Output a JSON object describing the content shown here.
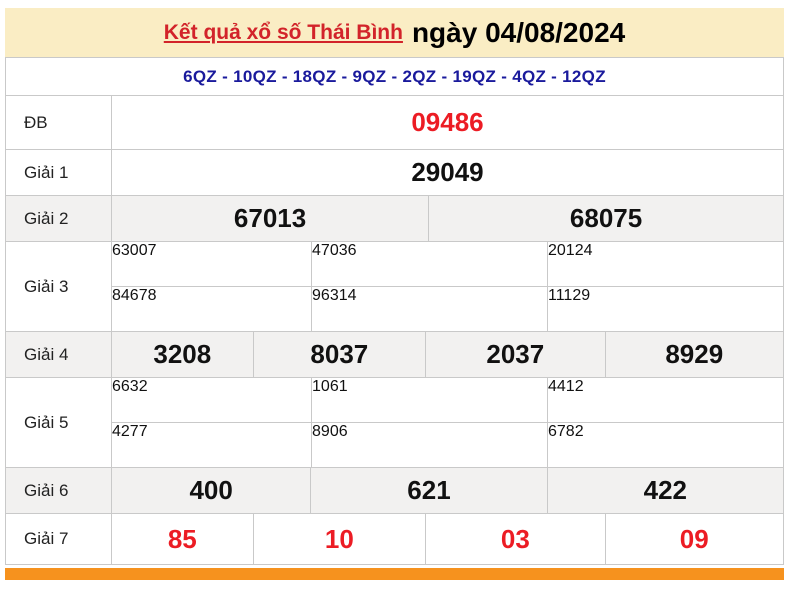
{
  "header": {
    "title_link": "Kết quả xổ số Thái Bình",
    "title_date": "ngày 04/08/2024"
  },
  "codes_line": "6QZ - 10QZ - 18QZ - 9QZ - 2QZ - 19QZ - 4QZ - 12QZ",
  "results": {
    "db": {
      "label": "ĐB",
      "value": "09486"
    },
    "g1": {
      "label": "Giải 1",
      "value": "29049"
    },
    "g2": {
      "label": "Giải 2",
      "values": [
        "67013",
        "68075"
      ]
    },
    "g3": {
      "label": "Giải 3",
      "row1": [
        "63007",
        "47036",
        "20124"
      ],
      "row2": [
        "84678",
        "96314",
        "11129"
      ]
    },
    "g4": {
      "label": "Giải 4",
      "values": [
        "3208",
        "8037",
        "2037",
        "8929"
      ]
    },
    "g5": {
      "label": "Giải 5",
      "row1": [
        "6632",
        "1061",
        "4412"
      ],
      "row2": [
        "4277",
        "8906",
        "6782"
      ]
    },
    "g6": {
      "label": "Giải 6",
      "values": [
        "400",
        "621",
        "422"
      ]
    },
    "g7": {
      "label": "Giải 7",
      "values": [
        "85",
        "10",
        "03",
        "09"
      ]
    }
  },
  "colors": {
    "header-bg": "#FAEDC4",
    "link-red": "#D2232A",
    "number-red": "#EC1C24",
    "code-blue": "#1A1A9C",
    "row-alt-bg": "#F2F1F0",
    "border": "#C9C9C9",
    "accent-orange": "#F6921E",
    "text": "#111111"
  }
}
